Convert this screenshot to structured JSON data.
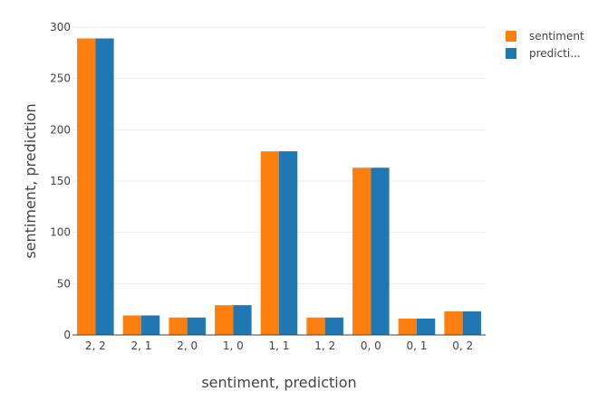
{
  "chart_data": {
    "type": "bar",
    "categories": [
      "2, 2",
      "2, 1",
      "2, 0",
      "1, 0",
      "1, 1",
      "1, 2",
      "0, 0",
      "0, 1",
      "0, 2"
    ],
    "series": [
      {
        "name": "sentiment",
        "color": "#ff7f0e",
        "values": [
          289,
          19,
          17,
          29,
          179,
          17,
          163,
          16,
          23
        ]
      },
      {
        "name": "predicti...",
        "color": "#1f77b4",
        "values": [
          289,
          19,
          17,
          29,
          179,
          17,
          163,
          16,
          23
        ]
      }
    ],
    "xlabel": "sentiment, prediction",
    "ylabel": "sentiment, prediction",
    "ylim": [
      0,
      300
    ],
    "yticks": [
      0,
      50,
      100,
      150,
      200,
      250,
      300
    ],
    "grid": true,
    "legend_position": "top-right"
  }
}
